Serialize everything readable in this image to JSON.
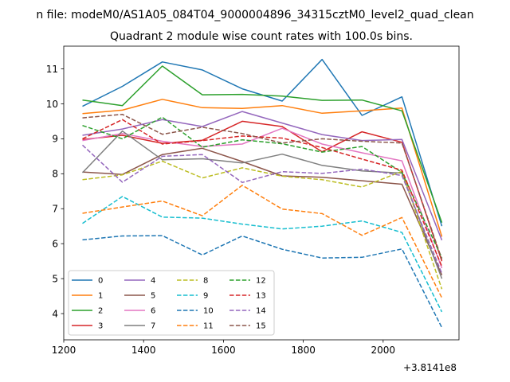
{
  "chart_data": {
    "type": "line",
    "suptitle": "n file: modeM0/AS1A05_084T04_9000004896_34315cztM0_level2_quad_clean",
    "title": "Quadrant 2 module wise count rates with 100.0s bins.",
    "xlabel": "",
    "ylabel": "",
    "x_offset_label": "+3.8141e8",
    "xlim": [
      1200,
      2190
    ],
    "ylim": [
      3.25,
      11.65
    ],
    "xticks": [
      1200,
      1400,
      1600,
      1800,
      2000
    ],
    "yticks": [
      4,
      5,
      6,
      7,
      8,
      9,
      10,
      11
    ],
    "x": [
      1247,
      1347,
      1447,
      1547,
      1647,
      1747,
      1847,
      1947,
      2047,
      2147
    ],
    "legend_position": "lower-left",
    "series": [
      {
        "name": "0",
        "color": "#1f77b4",
        "dash": false,
        "values": [
          9.93,
          10.5,
          11.2,
          10.97,
          10.43,
          10.08,
          11.27,
          9.67,
          10.2,
          6.5
        ]
      },
      {
        "name": "1",
        "color": "#ff7f0e",
        "dash": false,
        "values": [
          9.72,
          9.82,
          10.13,
          9.89,
          9.87,
          9.95,
          9.73,
          9.8,
          9.88,
          6.2
        ]
      },
      {
        "name": "2",
        "color": "#2ca02c",
        "dash": false,
        "values": [
          10.11,
          9.95,
          11.08,
          10.26,
          10.27,
          10.22,
          10.1,
          10.11,
          9.8,
          6.6
        ]
      },
      {
        "name": "3",
        "color": "#d62728",
        "dash": false,
        "values": [
          8.98,
          9.1,
          8.87,
          8.96,
          9.5,
          9.35,
          8.63,
          9.2,
          8.9,
          5.5
        ]
      },
      {
        "name": "4",
        "color": "#9467bd",
        "dash": false,
        "values": [
          9.1,
          9.28,
          9.55,
          9.35,
          9.78,
          9.45,
          9.12,
          8.95,
          8.98,
          6.1
        ]
      },
      {
        "name": "5",
        "color": "#8c564b",
        "dash": false,
        "values": [
          8.05,
          7.98,
          8.55,
          8.73,
          8.35,
          7.94,
          7.9,
          7.8,
          7.7,
          5.1
        ]
      },
      {
        "name": "6",
        "color": "#e377c2",
        "dash": false,
        "values": [
          8.95,
          9.15,
          8.93,
          8.78,
          8.85,
          9.3,
          8.85,
          8.6,
          8.37,
          5.3
        ]
      },
      {
        "name": "7",
        "color": "#7f7f7f",
        "dash": false,
        "values": [
          8.03,
          9.22,
          8.4,
          8.43,
          8.31,
          8.56,
          8.24,
          8.08,
          8.02,
          5.0
        ]
      },
      {
        "name": "8",
        "color": "#bcbd22",
        "dash": true,
        "values": [
          7.83,
          7.97,
          8.36,
          7.88,
          8.17,
          7.93,
          7.83,
          7.62,
          8.07,
          4.7
        ]
      },
      {
        "name": "9",
        "color": "#17becf",
        "dash": true,
        "values": [
          6.58,
          7.35,
          6.76,
          6.73,
          6.56,
          6.42,
          6.5,
          6.65,
          6.32,
          4.05
        ]
      },
      {
        "name": "10",
        "color": "#1f77b4",
        "dash": true,
        "values": [
          6.11,
          6.22,
          6.23,
          5.68,
          6.22,
          5.84,
          5.59,
          5.61,
          5.85,
          3.6
        ]
      },
      {
        "name": "11",
        "color": "#ff7f0e",
        "dash": true,
        "values": [
          6.87,
          7.05,
          7.22,
          6.8,
          7.67,
          6.99,
          6.86,
          6.24,
          6.75,
          4.45
        ]
      },
      {
        "name": "12",
        "color": "#2ca02c",
        "dash": true,
        "values": [
          9.38,
          9.0,
          9.62,
          8.76,
          8.97,
          8.86,
          8.62,
          8.78,
          8.04,
          5.6
        ]
      },
      {
        "name": "13",
        "color": "#d62728",
        "dash": true,
        "values": [
          9.0,
          9.55,
          8.85,
          8.95,
          9.08,
          9.02,
          8.75,
          8.42,
          8.1,
          5.35
        ]
      },
      {
        "name": "14",
        "color": "#9467bd",
        "dash": true,
        "values": [
          8.82,
          7.76,
          8.5,
          8.55,
          7.75,
          8.06,
          8.01,
          8.13,
          7.95,
          5.15
        ]
      },
      {
        "name": "15",
        "color": "#8c564b",
        "dash": true,
        "values": [
          9.6,
          9.7,
          9.13,
          9.33,
          9.15,
          8.88,
          9.0,
          8.93,
          8.88,
          5.55
        ]
      }
    ]
  }
}
